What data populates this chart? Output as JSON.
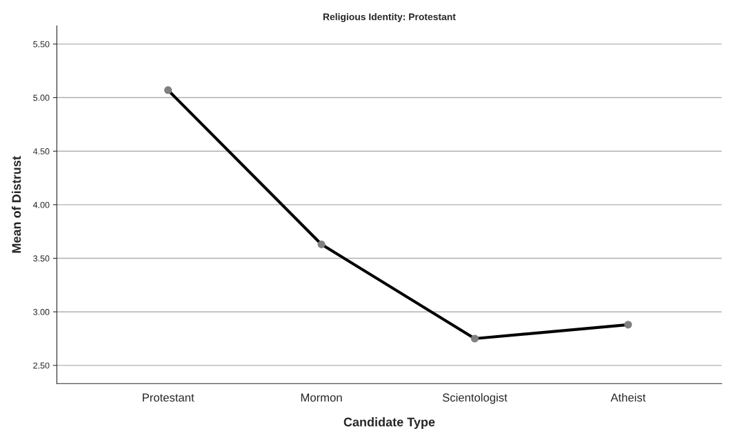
{
  "chart_data": {
    "type": "line",
    "title": "Religious Identity: Protestant",
    "xlabel": "Candidate Type",
    "ylabel": "Mean of Distrust",
    "categories": [
      "Protestant",
      "Mormon",
      "Scientologist",
      "Atheist"
    ],
    "series": [
      {
        "color": "#000000",
        "values": [
          5.07,
          3.63,
          2.75,
          2.88
        ]
      }
    ],
    "ylim": [
      2.33,
      5.67
    ],
    "yticks": [
      {
        "value": 2.5,
        "label": "2.50"
      },
      {
        "value": 3.0,
        "label": "3.00"
      },
      {
        "value": 3.5,
        "label": "3.50"
      },
      {
        "value": 4.0,
        "label": "4.00"
      },
      {
        "value": 4.5,
        "label": "4.50"
      },
      {
        "value": 5.0,
        "label": "5.00"
      },
      {
        "value": 5.5,
        "label": "5.50"
      }
    ],
    "grid": "y",
    "marker": "circle",
    "line_style": "solid"
  }
}
